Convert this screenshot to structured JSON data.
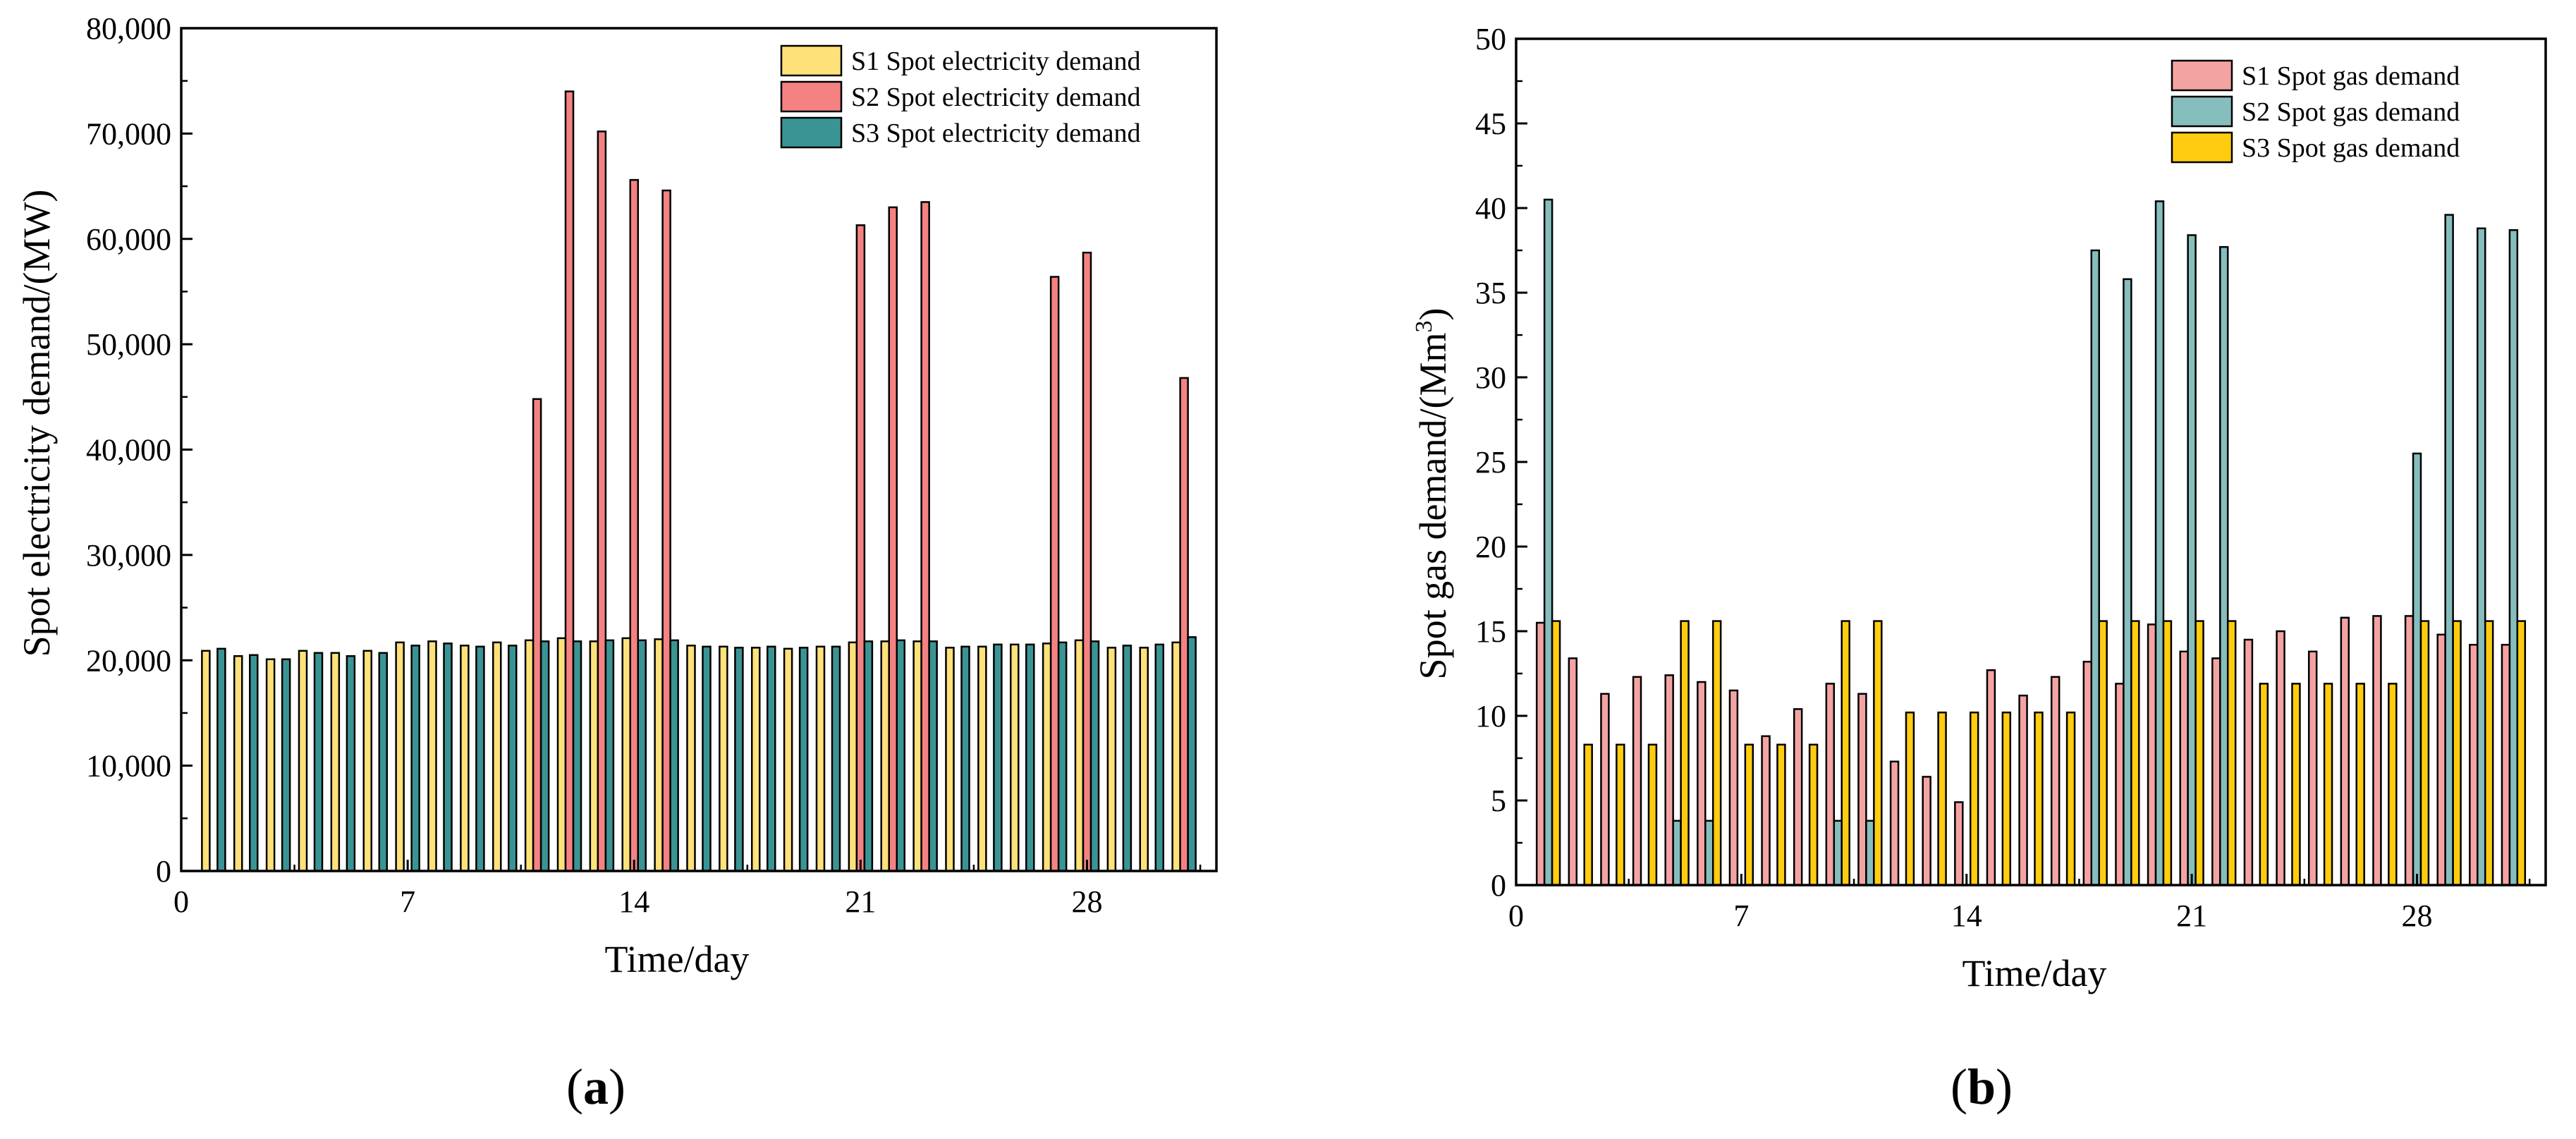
{
  "chart_data": [
    {
      "type": "bar",
      "panel_label": "a",
      "xlabel": "Time/day",
      "ylabel": "Spot electricity demand/(MW)",
      "x_ticks": [
        "0",
        "7",
        "14",
        "21",
        "28"
      ],
      "x_tick_values": [
        0,
        7,
        14,
        21,
        28
      ],
      "xlim": [
        0,
        32
      ],
      "ylim": [
        0,
        80000
      ],
      "y_ticks": [
        "0",
        "10,000",
        "20,000",
        "30,000",
        "40,000",
        "50,000",
        "60,000",
        "70,000",
        "80,000"
      ],
      "y_tick_values": [
        0,
        10000,
        20000,
        30000,
        40000,
        50000,
        60000,
        70000,
        80000
      ],
      "legend_position": "top-right",
      "days": [
        1,
        2,
        3,
        4,
        5,
        6,
        7,
        8,
        9,
        10,
        11,
        12,
        13,
        14,
        15,
        16,
        17,
        18,
        19,
        20,
        21,
        22,
        23,
        24,
        25,
        26,
        27,
        28,
        29,
        30,
        31
      ],
      "series": [
        {
          "name": "S1 Spot electricity demand",
          "color": "#FFE17A",
          "values": [
            20900,
            20400,
            20100,
            20900,
            20700,
            20900,
            21700,
            21800,
            21400,
            21700,
            21900,
            22100,
            21800,
            22100,
            22000,
            21400,
            21300,
            21200,
            21100,
            21300,
            21700,
            21800,
            21800,
            21200,
            21300,
            21500,
            21600,
            21900,
            21200,
            21200,
            21700
          ]
        },
        {
          "name": "S2 Spot electricity demand",
          "color": "#F58282",
          "values": [
            0,
            0,
            0,
            0,
            0,
            0,
            0,
            0,
            0,
            0,
            44800,
            74000,
            70200,
            65600,
            64600,
            0,
            0,
            0,
            0,
            0,
            61300,
            63000,
            63500,
            0,
            0,
            0,
            56400,
            58700,
            0,
            0,
            46800
          ]
        },
        {
          "name": "S3 Spot electricity demand",
          "color": "#3B9494",
          "values": [
            21100,
            20500,
            20100,
            20700,
            20400,
            20700,
            21400,
            21600,
            21300,
            21400,
            21800,
            21800,
            21900,
            21900,
            21900,
            21300,
            21200,
            21300,
            21200,
            21300,
            21800,
            21900,
            21800,
            21300,
            21500,
            21500,
            21700,
            21800,
            21400,
            21500,
            22200
          ]
        }
      ]
    },
    {
      "type": "bar",
      "panel_label": "b",
      "xlabel": "Time/day",
      "ylabel_main": "Spot gas demand/(Mm",
      "ylabel_sup": "3",
      "ylabel_end": ")",
      "x_ticks": [
        "0",
        "7",
        "14",
        "21",
        "28"
      ],
      "x_tick_values": [
        0,
        7,
        14,
        21,
        28
      ],
      "xlim": [
        0,
        32
      ],
      "ylim": [
        0,
        50
      ],
      "y_ticks": [
        "0",
        "5",
        "10",
        "15",
        "20",
        "25",
        "30",
        "35",
        "40",
        "45",
        "50"
      ],
      "y_tick_values": [
        0,
        5,
        10,
        15,
        20,
        25,
        30,
        35,
        40,
        45,
        50
      ],
      "legend_position": "top-right",
      "days": [
        1,
        2,
        3,
        4,
        5,
        6,
        7,
        8,
        9,
        10,
        11,
        12,
        13,
        14,
        15,
        16,
        17,
        18,
        19,
        20,
        21,
        22,
        23,
        24,
        25,
        26,
        27,
        28,
        29,
        30,
        31
      ],
      "series": [
        {
          "name": "S1 Spot gas demand",
          "color": "#F4A3A3",
          "values": [
            15.5,
            13.4,
            11.3,
            12.3,
            12.4,
            12.0,
            11.5,
            8.8,
            10.4,
            11.9,
            11.3,
            7.3,
            6.4,
            4.9,
            12.7,
            11.2,
            12.3,
            13.2,
            11.9,
            15.4,
            13.8,
            13.4,
            14.5,
            15.0,
            13.8,
            15.8,
            15.9,
            15.9,
            14.8,
            14.2,
            14.2
          ]
        },
        {
          "name": "S2 Spot gas demand",
          "color": "#86BDBD",
          "values": [
            40.5,
            0,
            0,
            0,
            3.8,
            3.8,
            0,
            0,
            0,
            3.8,
            3.8,
            0,
            0,
            0,
            0,
            0,
            0,
            37.5,
            35.8,
            40.4,
            38.4,
            37.7,
            0,
            0,
            0,
            0,
            0,
            25.5,
            39.6,
            38.8,
            38.7
          ]
        },
        {
          "name": "S3 Spot gas demand",
          "color": "#FFCC0F",
          "values": [
            15.6,
            8.3,
            8.3,
            8.3,
            15.6,
            15.6,
            8.3,
            8.3,
            8.3,
            15.6,
            15.6,
            10.2,
            10.2,
            10.2,
            10.2,
            10.2,
            10.2,
            15.6,
            15.6,
            15.6,
            15.6,
            15.6,
            11.9,
            11.9,
            11.9,
            11.9,
            11.9,
            15.6,
            15.6,
            15.6,
            15.6
          ]
        }
      ]
    }
  ]
}
